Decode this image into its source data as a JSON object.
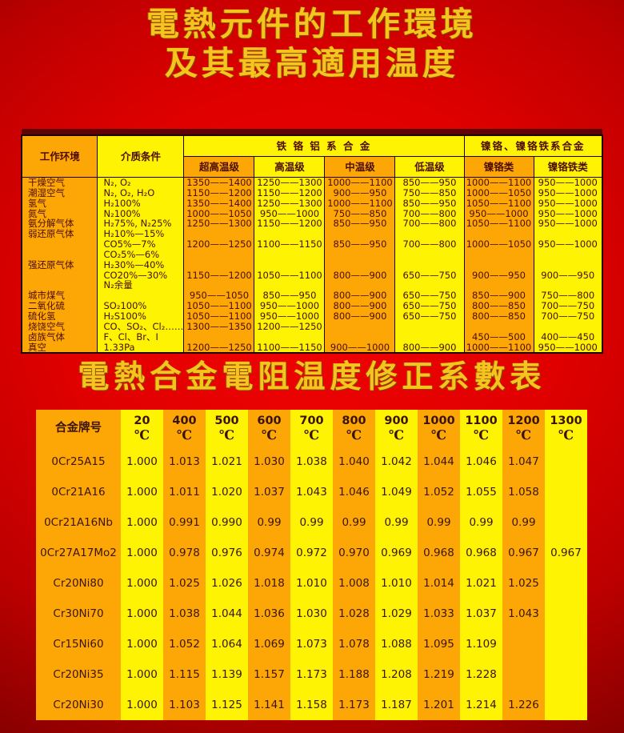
{
  "page": {
    "title_line1": "電熱元件的工作環境",
    "title_line2": "及其最高適用温度",
    "section_title": "電熱合金電阻温度修正系數表"
  },
  "colors": {
    "background_center": "#f10303",
    "background_edge": "#4d0000",
    "cell_orange": "#fda706",
    "cell_yellow": "#fdf303",
    "title_gold": "#f6c41e",
    "table_text": "#4d0c00"
  },
  "env_table": {
    "header_work_env": "工作环境",
    "header_medium": "介质条件",
    "header_fecral_group": "铁 铬 铝 系 合 金",
    "header_nicr_group": "镍铬、镍铬铁系合金",
    "sub_headers": [
      "超高温级",
      "高温级",
      "中温级",
      "低温级",
      "镍铬类",
      "镍铬铁类"
    ],
    "lines": [
      [
        "干燥空气",
        "N₂, O₂",
        "1350——1400",
        "1250——1300",
        "1000——1100",
        "850——950",
        "1000——1100",
        "950——1000"
      ],
      [
        "潮湿空气",
        "N₂, O₂, H₂O",
        "1150——1200",
        "1150——1200",
        "900——950",
        "750——850",
        "1000——1050",
        "950——1000"
      ],
      [
        "氢气",
        "H₂100%",
        "1350——1400",
        "1250——1300",
        "1000——1100",
        "850——950",
        "1050——1100",
        "950——1000"
      ],
      [
        "氮气",
        "N₂100%",
        "1000——1050",
        "950——1000",
        "750——850",
        "700——800",
        "950——1000",
        "950——1000"
      ],
      [
        "氨分解气体",
        "H₂75%, N₂25%",
        "1250——1300",
        "1150——1200",
        "850——950",
        "700——800",
        "1050——1100",
        "950——1000"
      ],
      [
        "弱还原气体",
        "H₂10%—15%",
        "",
        "",
        "",
        "",
        "",
        ""
      ],
      [
        "",
        "CO5%—7%",
        "1200——1250",
        "1100——1150",
        "850——950",
        "700——800",
        "1000——1050",
        "950——1000"
      ],
      [
        "",
        "CO₂5%—6%",
        "",
        "",
        "",
        "",
        "",
        ""
      ],
      [
        "强还原气体",
        "H₂30%—40%",
        "",
        "",
        "",
        "",
        "",
        ""
      ],
      [
        "",
        "CO20%—30%",
        "1150——1200",
        "1050——1100",
        "800——900",
        "650——750",
        "900——950",
        "900——950"
      ],
      [
        "",
        "N₂余量",
        "",
        "",
        "",
        "",
        "",
        ""
      ],
      [
        "城市煤气",
        "",
        "950——1050",
        "850——950",
        "800——900",
        "650——750",
        "850——900",
        "750——800"
      ],
      [
        "二氧化硫",
        "SO₂100%",
        "1050——1100",
        "950——1000",
        "800——900",
        "650——750",
        "800——850",
        "700——750"
      ],
      [
        "硫化氢",
        "H₂S100%",
        "1050——1100",
        "950——1000",
        "800——900",
        "650——750",
        "800——850",
        "700——750"
      ],
      [
        "烧饶空气",
        "CO、SO₂、Cl₂……",
        "1300——1350",
        "1200——1250",
        "",
        "",
        "",
        ""
      ],
      [
        "卤族气体",
        "F、Cl、Br、I",
        "",
        "",
        "",
        "",
        "450——500",
        "400——450"
      ],
      [
        "真空",
        "1.33Pa",
        "1200——1250",
        "1100——1150",
        "900——1000",
        "800——900",
        "1000——1100",
        "950——1000"
      ]
    ]
  },
  "coef_table": {
    "corner_header": "合金牌号",
    "degree_unit": "℃",
    "temp_headers": [
      "20",
      "400",
      "500",
      "600",
      "700",
      "800",
      "900",
      "1000",
      "1100",
      "1200",
      "1300"
    ],
    "rows": [
      {
        "alloy": "0Cr25A15",
        "values": [
          "1.000",
          "1.013",
          "1.021",
          "1.030",
          "1.038",
          "1.040",
          "1.042",
          "1.044",
          "1.046",
          "1.047",
          ""
        ]
      },
      {
        "alloy": "0Cr21A16",
        "values": [
          "1.000",
          "1.011",
          "1.020",
          "1.037",
          "1.043",
          "1.046",
          "1.049",
          "1.052",
          "1.055",
          "1.058",
          ""
        ]
      },
      {
        "alloy": "0Cr21A16Nb",
        "values": [
          "1.000",
          "0.991",
          "0.990",
          "0.99",
          "0.99",
          "0.99",
          "0.99",
          "0.99",
          "0.99",
          "0.99",
          ""
        ]
      },
      {
        "alloy": "0Cr27A17Mo2",
        "values": [
          "1.000",
          "0.978",
          "0.976",
          "0.974",
          "0.972",
          "0.970",
          "0.969",
          "0.968",
          "0.968",
          "0.967",
          "0.967"
        ]
      },
      {
        "alloy": "Cr20Ni80",
        "values": [
          "1.000",
          "1.025",
          "1.026",
          "1.018",
          "1.010",
          "1.008",
          "1.010",
          "1.014",
          "1.021",
          "1.025",
          ""
        ]
      },
      {
        "alloy": "Cr30Ni70",
        "values": [
          "1.000",
          "1.038",
          "1.044",
          "1.036",
          "1.030",
          "1.028",
          "1.029",
          "1.033",
          "1.037",
          "1.043",
          ""
        ]
      },
      {
        "alloy": "Cr15Ni60",
        "values": [
          "1.000",
          "1.052",
          "1.064",
          "1.069",
          "1.073",
          "1.078",
          "1.088",
          "1.095",
          "1.109",
          "",
          ""
        ]
      },
      {
        "alloy": "Cr20Ni35",
        "values": [
          "1.000",
          "1.115",
          "1.139",
          "1.157",
          "1.173",
          "1.188",
          "1.208",
          "1.219",
          "1.228",
          "",
          ""
        ]
      },
      {
        "alloy": "Cr20Ni30",
        "values": [
          "1.000",
          "1.103",
          "1.125",
          "1.141",
          "1.158",
          "1.173",
          "1.187",
          "1.201",
          "1.214",
          "1.226",
          ""
        ]
      }
    ]
  }
}
